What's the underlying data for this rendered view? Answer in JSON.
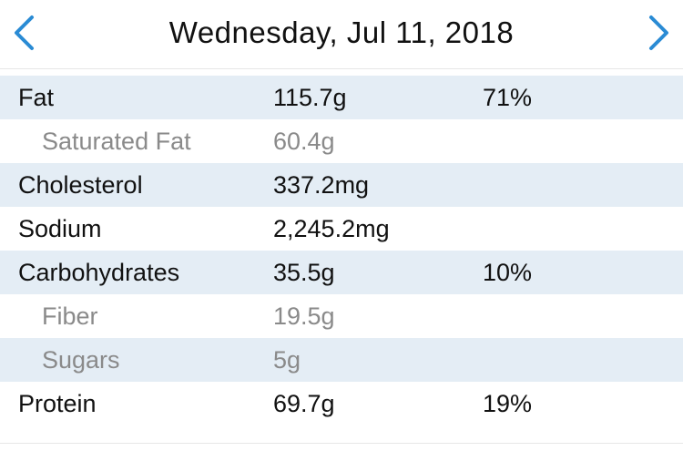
{
  "header": {
    "date": "Wednesday, Jul 11, 2018",
    "prev_icon": "chevron-left-icon",
    "next_icon": "chevron-right-icon",
    "accent_color": "#2a8bd4"
  },
  "nutrition": {
    "rows": [
      {
        "name": "Fat",
        "amount": "115.7g",
        "percent": "71%"
      },
      {
        "name": "Saturated Fat",
        "amount": "60.4g",
        "percent": ""
      },
      {
        "name": "Cholesterol",
        "amount": "337.2mg",
        "percent": ""
      },
      {
        "name": "Sodium",
        "amount": "2,245.2mg",
        "percent": ""
      },
      {
        "name": "Carbohydrates",
        "amount": "35.5g",
        "percent": "10%"
      },
      {
        "name": "Fiber",
        "amount": "19.5g",
        "percent": ""
      },
      {
        "name": "Sugars",
        "amount": "5g",
        "percent": ""
      },
      {
        "name": "Protein",
        "amount": "69.7g",
        "percent": "19%"
      }
    ]
  },
  "colors": {
    "row_shade": "#e4edf5",
    "sub_text": "#8a8a8a",
    "text": "#111111"
  }
}
